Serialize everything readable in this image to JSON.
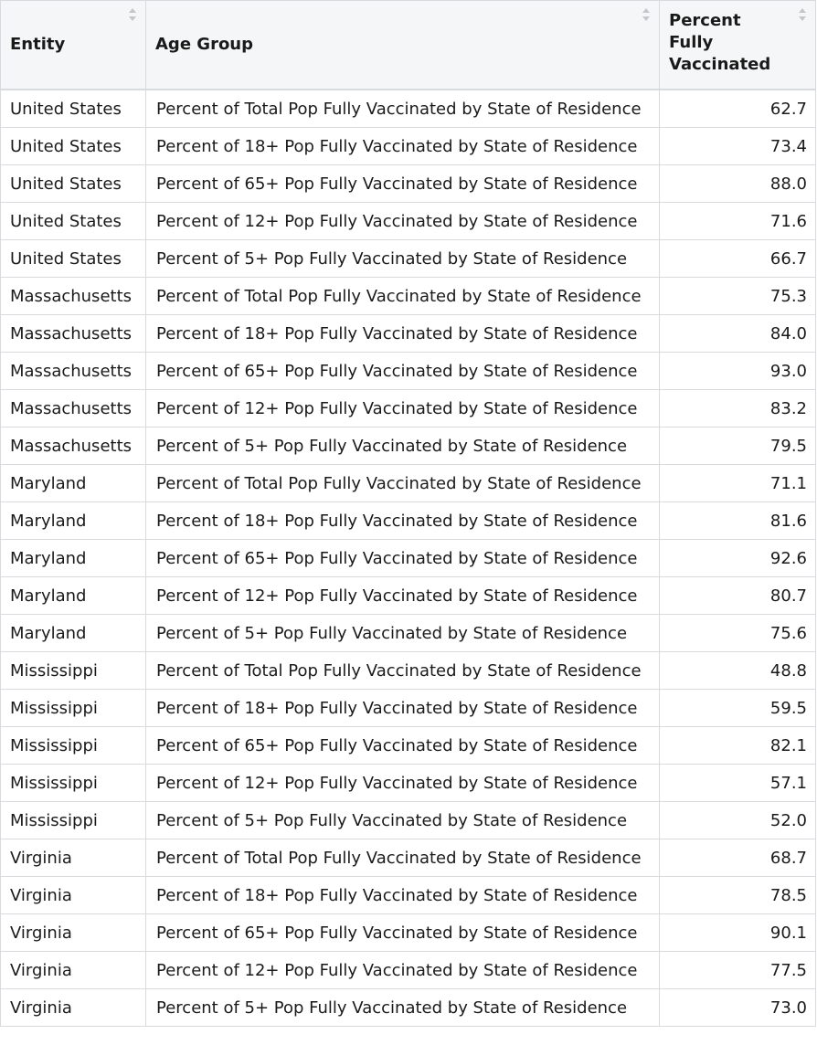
{
  "table": {
    "columns": [
      {
        "label": "Entity"
      },
      {
        "label": "Age Group"
      },
      {
        "label": "Percent Fully Vaccinated"
      }
    ],
    "rows": [
      {
        "entity": "United States",
        "age_group": "Percent of Total Pop Fully Vaccinated by State of Residence",
        "percent": "62.7"
      },
      {
        "entity": "United States",
        "age_group": "Percent of 18+ Pop Fully Vaccinated by State of Residence",
        "percent": "73.4"
      },
      {
        "entity": "United States",
        "age_group": "Percent of 65+ Pop Fully Vaccinated by State of Residence",
        "percent": "88.0"
      },
      {
        "entity": "United States",
        "age_group": "Percent of 12+ Pop Fully Vaccinated by State of Residence",
        "percent": "71.6"
      },
      {
        "entity": "United States",
        "age_group": "Percent of 5+ Pop Fully Vaccinated by State of Residence",
        "percent": "66.7"
      },
      {
        "entity": "Massachusetts",
        "age_group": "Percent of Total Pop Fully Vaccinated by State of Residence",
        "percent": "75.3"
      },
      {
        "entity": "Massachusetts",
        "age_group": "Percent of 18+ Pop Fully Vaccinated by State of Residence",
        "percent": "84.0"
      },
      {
        "entity": "Massachusetts",
        "age_group": "Percent of 65+ Pop Fully Vaccinated by State of Residence",
        "percent": "93.0"
      },
      {
        "entity": "Massachusetts",
        "age_group": "Percent of 12+ Pop Fully Vaccinated by State of Residence",
        "percent": "83.2"
      },
      {
        "entity": "Massachusetts",
        "age_group": "Percent of 5+ Pop Fully Vaccinated by State of Residence",
        "percent": "79.5"
      },
      {
        "entity": "Maryland",
        "age_group": "Percent of Total Pop Fully Vaccinated by State of Residence",
        "percent": "71.1"
      },
      {
        "entity": "Maryland",
        "age_group": "Percent of 18+ Pop Fully Vaccinated by State of Residence",
        "percent": "81.6"
      },
      {
        "entity": "Maryland",
        "age_group": "Percent of 65+ Pop Fully Vaccinated by State of Residence",
        "percent": "92.6"
      },
      {
        "entity": "Maryland",
        "age_group": "Percent of 12+ Pop Fully Vaccinated by State of Residence",
        "percent": "80.7"
      },
      {
        "entity": "Maryland",
        "age_group": "Percent of 5+ Pop Fully Vaccinated by State of Residence",
        "percent": "75.6"
      },
      {
        "entity": "Mississippi",
        "age_group": "Percent of Total Pop Fully Vaccinated by State of Residence",
        "percent": "48.8"
      },
      {
        "entity": "Mississippi",
        "age_group": "Percent of 18+ Pop Fully Vaccinated by State of Residence",
        "percent": "59.5"
      },
      {
        "entity": "Mississippi",
        "age_group": "Percent of 65+ Pop Fully Vaccinated by State of Residence",
        "percent": "82.1"
      },
      {
        "entity": "Mississippi",
        "age_group": "Percent of 12+ Pop Fully Vaccinated by State of Residence",
        "percent": "57.1"
      },
      {
        "entity": "Mississippi",
        "age_group": "Percent of 5+ Pop Fully Vaccinated by State of Residence",
        "percent": "52.0"
      },
      {
        "entity": "Virginia",
        "age_group": "Percent of Total Pop Fully Vaccinated by State of Residence",
        "percent": "68.7"
      },
      {
        "entity": "Virginia",
        "age_group": "Percent of 18+ Pop Fully Vaccinated by State of Residence",
        "percent": "78.5"
      },
      {
        "entity": "Virginia",
        "age_group": "Percent of 65+ Pop Fully Vaccinated by State of Residence",
        "percent": "90.1"
      },
      {
        "entity": "Virginia",
        "age_group": "Percent of 12+ Pop Fully Vaccinated by State of Residence",
        "percent": "77.5"
      },
      {
        "entity": "Virginia",
        "age_group": "Percent of 5+ Pop Fully Vaccinated by State of Residence",
        "percent": "73.0"
      }
    ]
  },
  "icons": {
    "sort": "sort-icon"
  },
  "colors": {
    "header_background": "#f5f6f7",
    "border": "#d8dadd",
    "text": "#1a1a1a",
    "sort_icon": "#c4c6c9"
  }
}
